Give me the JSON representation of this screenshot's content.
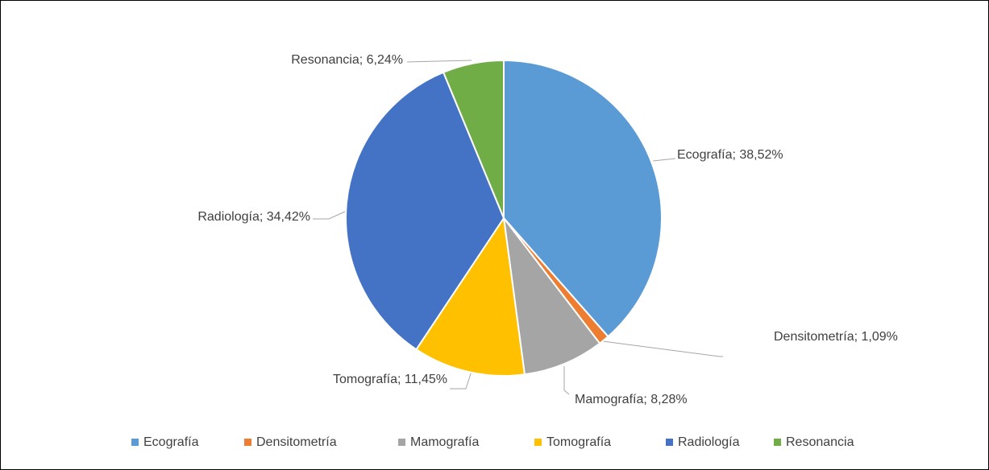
{
  "chart_data": {
    "type": "pie",
    "categories": [
      "Ecografía",
      "Densitometría",
      "Mamografía",
      "Tomografía",
      "Radiología",
      "Resonancia"
    ],
    "values": [
      38.52,
      1.09,
      8.28,
      11.45,
      34.42,
      6.24
    ],
    "value_labels": [
      "Ecografía; 38,52%",
      "Densitometría; 1,09%",
      "Mamografía; 8,28%",
      "Tomografía; 11,45%",
      "Radiología; 34,42%",
      "Resonancia; 6,24%"
    ],
    "colors": [
      "#5b9bd5",
      "#ed7d31",
      "#a5a5a5",
      "#ffc000",
      "#4472c4",
      "#70ad47"
    ],
    "legend": "bottom"
  }
}
